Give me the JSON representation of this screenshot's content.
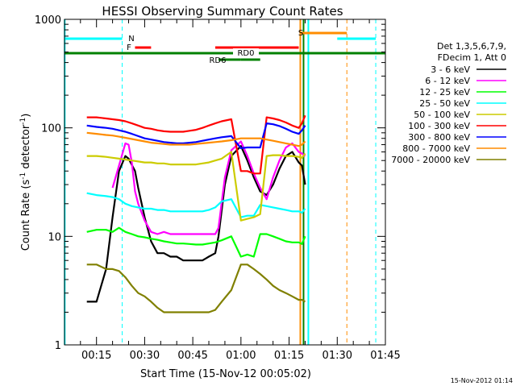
{
  "chart_data": {
    "type": "line",
    "title": "HESSI Observing Summary Count Rates",
    "xlabel": "Start Time (15-Nov-12 00:05:02)",
    "ylabel_main": "Count Rate (s",
    "ylabel_sup1": "-1",
    "ylabel_mid": " detector",
    "ylabel_sup2": "-1",
    "ylabel_end": ")",
    "y_scale": "log",
    "ylim": [
      1,
      1000
    ],
    "xlim_minutes": [
      5.03,
      105
    ],
    "y_ticks": [
      {
        "value": 1,
        "label": "1"
      },
      {
        "value": 10,
        "label": "10"
      },
      {
        "value": 100,
        "label": "100"
      },
      {
        "value": 1000,
        "label": "1000"
      }
    ],
    "x_ticks": [
      {
        "minute": 15,
        "label": "00:15"
      },
      {
        "minute": 30,
        "label": "00:30"
      },
      {
        "minute": 45,
        "label": "00:45"
      },
      {
        "minute": 60,
        "label": "01:00"
      },
      {
        "minute": 75,
        "label": "01:15"
      },
      {
        "minute": 90,
        "label": "01:30"
      },
      {
        "minute": 105,
        "label": "01:45"
      }
    ],
    "legend": {
      "placement": "right",
      "header": [
        "Det 1,3,5,6,7,9,",
        "FDecim 1, Att 0"
      ]
    },
    "flags": [
      {
        "label": "N",
        "color": "#00ffff",
        "segments": [
          [
            5,
            23
          ],
          [
            90,
            102
          ]
        ]
      },
      {
        "label": "S",
        "color": "#ff8c00",
        "segments": [
          [
            78.5,
            93
          ]
        ]
      },
      {
        "label": "F",
        "color": "#ff0000",
        "segments": [
          [
            27,
            32
          ],
          [
            52,
            78
          ]
        ]
      },
      {
        "label": "RD0",
        "color": "#008000",
        "segments": [
          [
            5,
            105
          ]
        ]
      },
      {
        "label": "RD6",
        "color": "#008000",
        "segments": [
          [
            53,
            60
          ],
          [
            60,
            66
          ]
        ]
      }
    ],
    "vlines": [
      {
        "minute": 5.1,
        "color": "#00ffff",
        "style": "solid"
      },
      {
        "minute": 23,
        "color": "#00ffff",
        "style": "dashed"
      },
      {
        "minute": 78.5,
        "color": "#ff8c00",
        "style": "solid"
      },
      {
        "minute": 79.5,
        "color": "#008000",
        "style": "solid"
      },
      {
        "minute": 81,
        "color": "#00ffff",
        "style": "solid"
      },
      {
        "minute": 93,
        "color": "#ff8c00",
        "style": "dashed"
      },
      {
        "minute": 102,
        "color": "#00ffff",
        "style": "dashed"
      }
    ],
    "series": [
      {
        "name": "3 - 6 keV",
        "color": "#000000",
        "x": [
          12,
          15,
          18,
          20,
          22,
          24,
          25,
          27,
          28,
          30,
          32,
          34,
          36,
          38,
          40,
          42,
          44,
          46,
          48,
          50,
          52,
          53,
          55,
          57,
          60,
          62,
          64,
          66,
          68,
          70,
          72,
          74,
          76,
          78,
          79,
          80
        ],
        "y": [
          2.5,
          2.5,
          5,
          15,
          40,
          55,
          52,
          40,
          28,
          15,
          9,
          7,
          7,
          6.5,
          6.5,
          6,
          6,
          6,
          6,
          6.5,
          7,
          10,
          30,
          55,
          68,
          50,
          35,
          26,
          24,
          30,
          42,
          55,
          60,
          48,
          45,
          30
        ]
      },
      {
        "name": "6 - 12 keV",
        "color": "#ff00ff",
        "x": [
          20,
          22,
          24,
          25,
          26,
          27,
          28,
          30,
          32,
          34,
          36,
          38,
          40,
          42,
          44,
          46,
          48,
          50,
          52,
          53,
          55,
          57,
          60,
          62,
          64,
          66,
          68,
          70,
          72,
          74,
          76,
          78,
          79,
          80
        ],
        "y": [
          28,
          45,
          72,
          70,
          48,
          26,
          20,
          14,
          11,
          10.5,
          11,
          10.5,
          10.5,
          10.5,
          10.5,
          10.5,
          10.5,
          10.5,
          10.5,
          12,
          35,
          62,
          75,
          55,
          38,
          28,
          22,
          35,
          50,
          66,
          72,
          60,
          58,
          55
        ]
      },
      {
        "name": "12 - 25 keV",
        "color": "#00ff00",
        "x": [
          12,
          15,
          18,
          20,
          22,
          24,
          26,
          28,
          30,
          32,
          34,
          36,
          38,
          40,
          42,
          44,
          46,
          48,
          50,
          52,
          54,
          57,
          60,
          62,
          64,
          66,
          68,
          70,
          72,
          74,
          76,
          78,
          79,
          80
        ],
        "y": [
          11,
          11.5,
          11.5,
          11,
          12,
          11,
          10.5,
          10,
          9.8,
          9.5,
          9.3,
          9,
          8.8,
          8.6,
          8.6,
          8.5,
          8.4,
          8.4,
          8.6,
          8.8,
          9.2,
          10,
          6.5,
          6.8,
          6.5,
          10.5,
          10.5,
          10,
          9.5,
          9,
          8.8,
          8.8,
          8.5,
          10
        ]
      },
      {
        "name": "25 - 50 keV",
        "color": "#00ffff",
        "x": [
          12,
          15,
          18,
          20,
          22,
          24,
          26,
          28,
          30,
          32,
          34,
          36,
          38,
          40,
          42,
          44,
          46,
          48,
          50,
          52,
          54,
          57,
          60,
          62,
          64,
          66,
          68,
          70,
          72,
          74,
          76,
          78,
          79,
          80
        ],
        "y": [
          25,
          24,
          23.5,
          23,
          22,
          20,
          19,
          18.5,
          18,
          18,
          17.5,
          17.5,
          17,
          17,
          17,
          17,
          17,
          17,
          17.5,
          18.5,
          21,
          22,
          15,
          15.5,
          15.5,
          19.5,
          19,
          18.5,
          18,
          17.5,
          17,
          17,
          16.5,
          18
        ]
      },
      {
        "name": "50 - 100 keV",
        "color": "#cccc00",
        "x": [
          12,
          15,
          18,
          20,
          22,
          24,
          26,
          28,
          30,
          32,
          34,
          36,
          38,
          40,
          42,
          44,
          46,
          48,
          50,
          52,
          54,
          57,
          60,
          62,
          64,
          66,
          68,
          70,
          72,
          74,
          76,
          78,
          79,
          80
        ],
        "y": [
          55,
          55,
          54,
          53,
          52,
          51,
          50,
          49,
          48,
          48,
          47,
          47,
          46,
          46,
          46,
          46,
          46,
          47,
          48,
          50,
          52,
          60,
          14,
          14.5,
          15,
          16,
          55,
          56,
          56,
          55,
          55,
          54,
          53,
          58
        ]
      },
      {
        "name": "100 - 300 keV",
        "color": "#ff0000",
        "x": [
          12,
          15,
          18,
          20,
          22,
          24,
          26,
          28,
          30,
          32,
          34,
          36,
          38,
          40,
          42,
          44,
          46,
          48,
          50,
          52,
          54,
          57,
          60,
          62,
          64,
          66,
          68,
          70,
          72,
          74,
          76,
          78,
          79,
          80
        ],
        "y": [
          125,
          125,
          122,
          120,
          118,
          115,
          110,
          105,
          100,
          98,
          95,
          93,
          92,
          92,
          92,
          94,
          96,
          100,
          105,
          110,
          115,
          120,
          40,
          40,
          38,
          38,
          125,
          122,
          118,
          112,
          105,
          100,
          110,
          130
        ]
      },
      {
        "name": "300 - 800 keV",
        "color": "#0000ff",
        "x": [
          12,
          15,
          18,
          20,
          22,
          24,
          26,
          28,
          30,
          32,
          34,
          36,
          38,
          40,
          42,
          44,
          46,
          48,
          50,
          52,
          54,
          57,
          60,
          62,
          64,
          66,
          68,
          70,
          72,
          74,
          76,
          78,
          79,
          80
        ],
        "y": [
          105,
          102,
          100,
          98,
          95,
          92,
          88,
          84,
          80,
          78,
          76,
          74,
          73,
          72,
          72,
          73,
          74,
          76,
          78,
          80,
          82,
          84,
          65,
          66,
          66,
          66,
          110,
          108,
          104,
          98,
          92,
          88,
          95,
          105
        ]
      },
      {
        "name": "800 - 7000 keV",
        "color": "#ff8c00",
        "x": [
          12,
          15,
          18,
          20,
          22,
          24,
          26,
          28,
          30,
          32,
          34,
          36,
          38,
          40,
          42,
          44,
          46,
          48,
          50,
          52,
          54,
          57,
          60,
          62,
          64,
          66,
          68,
          70,
          72,
          74,
          76,
          78,
          79,
          80
        ],
        "y": [
          90,
          88,
          86,
          85,
          83,
          81,
          79,
          77,
          75,
          73,
          72,
          71,
          70,
          70,
          70,
          70,
          71,
          72,
          73,
          74,
          75,
          77,
          80,
          80,
          80,
          80,
          78,
          76,
          74,
          72,
          70,
          68,
          70,
          75
        ]
      },
      {
        "name": "7000 - 20000 keV",
        "color": "#808000",
        "x": [
          12,
          15,
          18,
          20,
          22,
          24,
          26,
          28,
          30,
          32,
          34,
          36,
          38,
          40,
          42,
          44,
          46,
          48,
          50,
          52,
          54,
          57,
          60,
          62,
          64,
          66,
          68,
          70,
          72,
          74,
          76,
          78,
          79,
          80
        ],
        "y": [
          5.5,
          5.5,
          5,
          5,
          4.8,
          4.2,
          3.5,
          3,
          2.8,
          2.5,
          2.2,
          2,
          2,
          2,
          2,
          2,
          2,
          2,
          2,
          2.1,
          2.5,
          3.2,
          5.5,
          5.5,
          5,
          4.5,
          4,
          3.5,
          3.2,
          3,
          2.8,
          2.6,
          2.6,
          2.5
        ]
      }
    ]
  },
  "footer_timestamp": "15-Nov-2012 01:14"
}
